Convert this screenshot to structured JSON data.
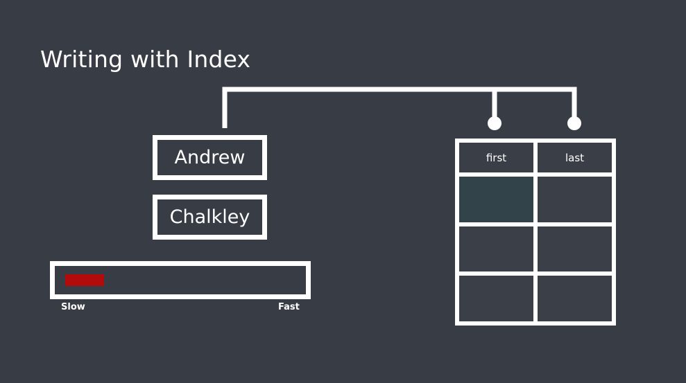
{
  "title": "Writing with Index",
  "records": {
    "first": "Andrew",
    "last": "Chalkley"
  },
  "speed_meter": {
    "level": 0.17,
    "slow_label": "Slow",
    "fast_label": "Fast",
    "fill_color": "#b10b0b"
  },
  "table": {
    "columns": [
      "first",
      "last"
    ],
    "row_count": 3,
    "highlighted_cell": {
      "row": 1,
      "column": "first"
    }
  },
  "colors": {
    "background": "#383d45",
    "line": "#ffffff",
    "highlight": "#33434a"
  }
}
